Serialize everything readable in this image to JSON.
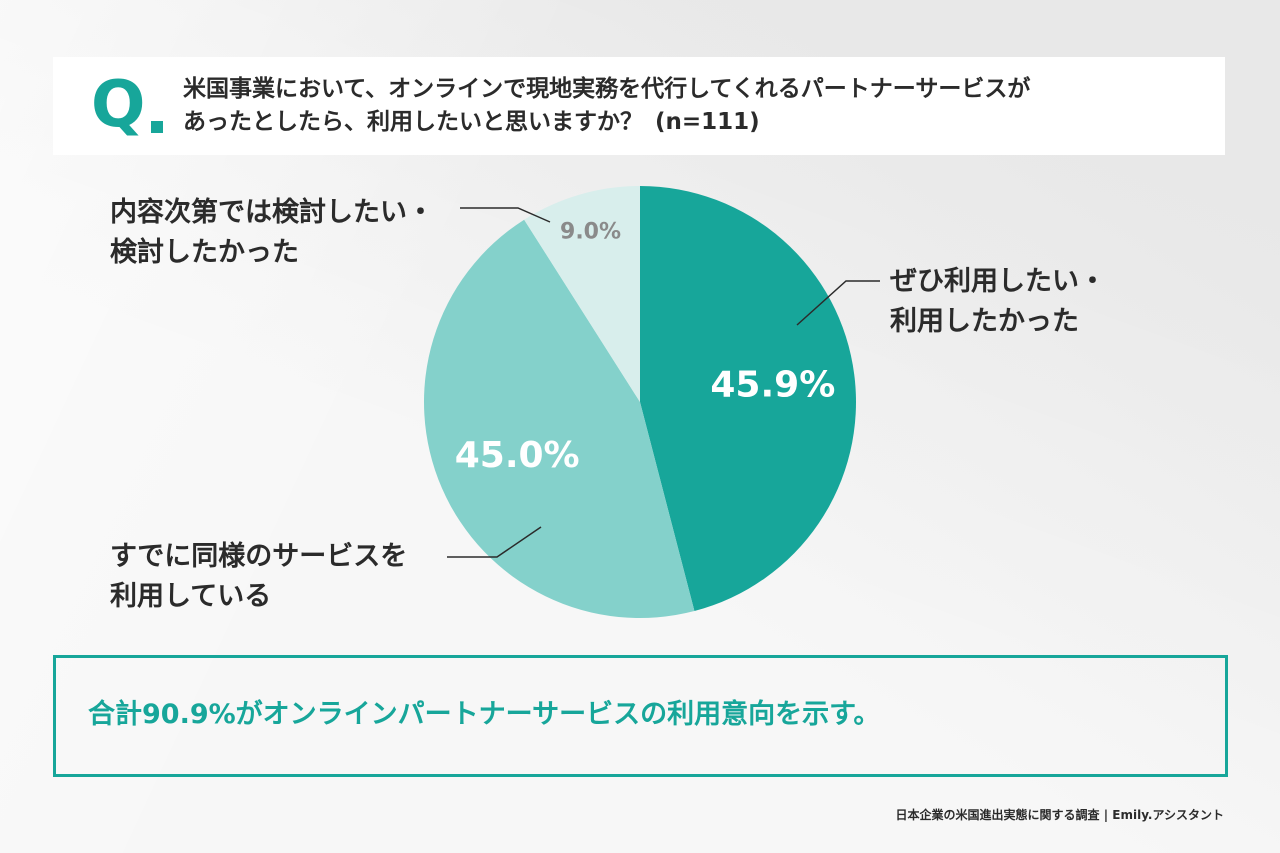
{
  "question": {
    "mark": "Q",
    "line1": "米国事業において、オンラインで現地実務を代行してくれるパートナーサービスが",
    "line2": "あったとしたら、利用したいと思いますか？",
    "sample": "(n=111)"
  },
  "labels": {
    "slice1": [
      "ぜひ利用したい・",
      "利用したかった"
    ],
    "slice2": [
      "すでに同様のサービスを",
      "利用している"
    ],
    "slice3": [
      "内容次第では検討したい・",
      "検討したかった"
    ]
  },
  "summary": "合計90.9%がオンラインパートナーサービスの利用意向を示す。",
  "footer": "日本企業の米国進出実態に関する調査 | Emily.アシスタント",
  "colors": {
    "slice1": "#17a69a",
    "slice2": "#84d1cb",
    "slice3": "#d8eeec",
    "accent": "#17a69a"
  },
  "chart_data": {
    "type": "pie",
    "categories": [
      "ぜひ利用したい・利用したかった",
      "すでに同様のサービスを利用している",
      "内容次第では検討したい・検討したかった"
    ],
    "values": [
      45.9,
      45.0,
      9.0
    ],
    "data_labels": [
      "45.9%",
      "45.0%",
      "9.0%"
    ],
    "start": "12 o'clock",
    "direction": "clockwise"
  }
}
